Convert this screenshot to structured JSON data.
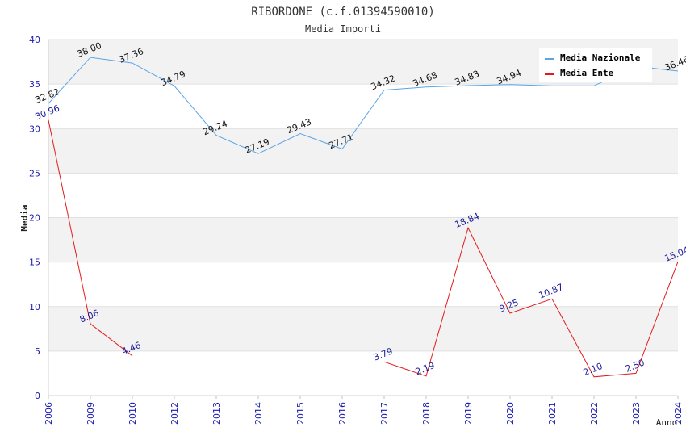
{
  "chart_data": {
    "type": "line",
    "title": "RIBORDONE (c.f.01394590010)",
    "subtitle": "Media Importi",
    "xlabel": "Anno",
    "ylabel": "Media",
    "ylim": [
      0,
      40
    ],
    "yticks": [
      0,
      5,
      10,
      15,
      20,
      25,
      30,
      35,
      40
    ],
    "grid": true,
    "legend_position": "top-right",
    "categories": [
      "2006",
      "2009",
      "2010",
      "2012",
      "2013",
      "2014",
      "2015",
      "2016",
      "2017",
      "2018",
      "2019",
      "2020",
      "2021",
      "2022",
      "2023",
      "2024"
    ],
    "series": [
      {
        "name": "Media Nazionale",
        "color": "#5aa5e6",
        "values": [
          32.82,
          38.0,
          37.36,
          34.79,
          29.24,
          27.19,
          29.43,
          27.71,
          34.32,
          34.68,
          34.83,
          34.94,
          34.8,
          34.8,
          37.0,
          36.46
        ],
        "labels": [
          "32.82",
          "38.00",
          "37.36",
          "34.79",
          "29.24",
          "27.19",
          "29.43",
          "27.71",
          "34.32",
          "34.68",
          "34.83",
          "34.94",
          "",
          "",
          "",
          "36.46"
        ]
      },
      {
        "name": "Media Ente",
        "color": "#e31a1c",
        "values": [
          30.96,
          8.06,
          4.46,
          null,
          null,
          null,
          null,
          null,
          3.79,
          2.19,
          18.84,
          9.25,
          10.87,
          2.1,
          2.5,
          15.04
        ],
        "labels": [
          "30.96",
          "8.06",
          "4.46",
          "",
          "",
          "",
          "",
          "",
          "3.79",
          "2.19",
          "18.84",
          "9.25",
          "10.87",
          "2.10",
          "2.50",
          "15.04"
        ]
      }
    ]
  }
}
